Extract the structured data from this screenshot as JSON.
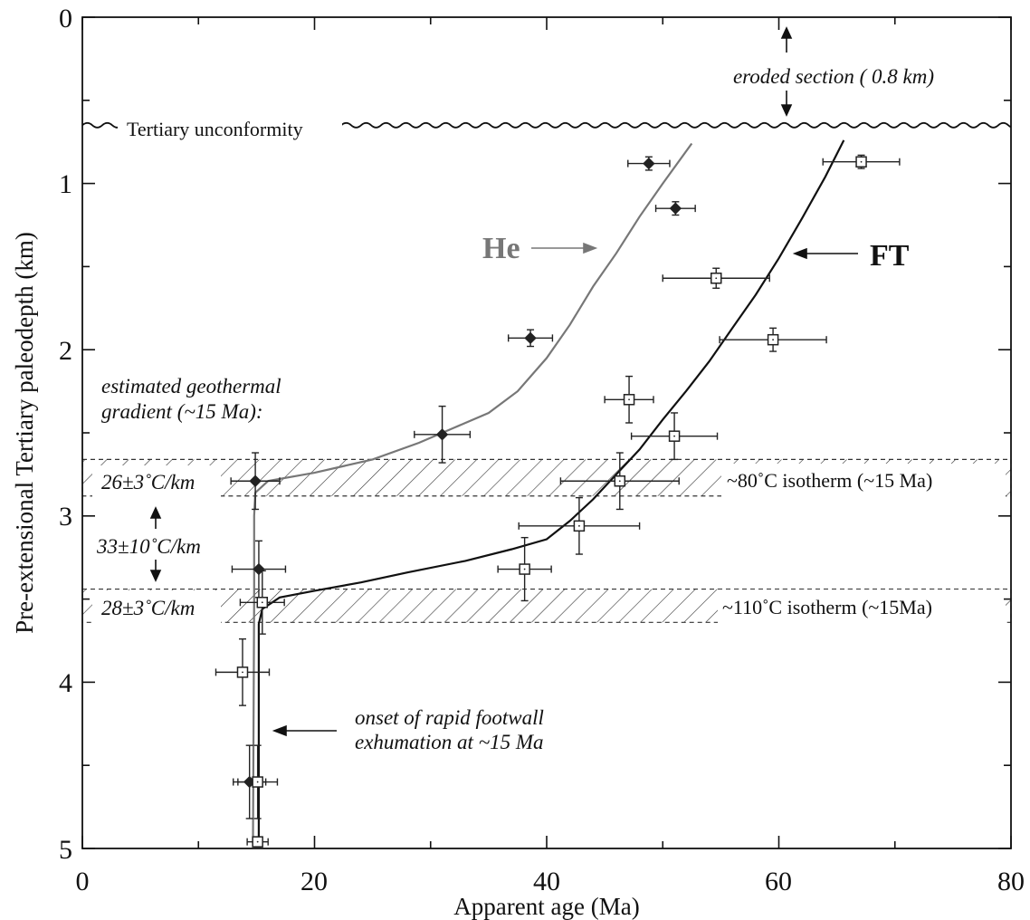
{
  "chart_data": {
    "type": "scatter",
    "title": "",
    "xlabel": "Apparent age (Ma)",
    "ylabel": "Pre-extensional Tertiary paleodepth (km)",
    "xlim": [
      0,
      80
    ],
    "ylim": [
      0,
      5
    ],
    "y_inverted": true,
    "x_ticks": [
      "0",
      "20",
      "40",
      "60",
      "80"
    ],
    "y_ticks": [
      "0",
      "1",
      "2",
      "3",
      "4",
      "5"
    ],
    "grid": false,
    "series": [
      {
        "name": "He",
        "marker": "filled-diamond",
        "color": "#222222",
        "points": [
          {
            "x": 48.8,
            "y": 0.88,
            "xerr": 1.8,
            "yerr": 0.04
          },
          {
            "x": 51.1,
            "y": 1.15,
            "xerr": 1.7,
            "yerr": 0.04
          },
          {
            "x": 38.6,
            "y": 1.93,
            "xerr": 1.9,
            "yerr": 0.05
          },
          {
            "x": 31.0,
            "y": 2.51,
            "xerr": 2.4,
            "yerr": 0.17
          },
          {
            "x": 14.9,
            "y": 2.79,
            "xerr": 2.1,
            "yerr": 0.17
          },
          {
            "x": 15.2,
            "y": 3.32,
            "xerr": 2.3,
            "yerr": 0.17
          },
          {
            "x": 14.4,
            "y": 4.6,
            "xerr": 1.4,
            "yerr": 0.22
          }
        ]
      },
      {
        "name": "FT",
        "marker": "open-square",
        "color": "#222222",
        "points": [
          {
            "x": 67.1,
            "y": 0.87,
            "xerr": 3.3,
            "yerr": 0.04
          },
          {
            "x": 54.6,
            "y": 1.57,
            "xerr": 4.6,
            "yerr": 0.06
          },
          {
            "x": 59.5,
            "y": 1.94,
            "xerr": 4.6,
            "yerr": 0.07
          },
          {
            "x": 47.1,
            "y": 2.3,
            "xerr": 2.1,
            "yerr": 0.14
          },
          {
            "x": 51.0,
            "y": 2.52,
            "xerr": 3.7,
            "yerr": 0.14
          },
          {
            "x": 46.3,
            "y": 2.79,
            "xerr": 5.1,
            "yerr": 0.17
          },
          {
            "x": 42.8,
            "y": 3.06,
            "xerr": 5.2,
            "yerr": 0.17
          },
          {
            "x": 38.1,
            "y": 3.32,
            "xerr": 2.3,
            "yerr": 0.19
          },
          {
            "x": 15.5,
            "y": 3.52,
            "xerr": 1.9,
            "yerr": 0.19
          },
          {
            "x": 13.8,
            "y": 3.94,
            "xerr": 2.3,
            "yerr": 0.2
          },
          {
            "x": 15.1,
            "y": 4.6,
            "xerr": 1.7,
            "yerr": 0.22
          },
          {
            "x": 15.1,
            "y": 4.96,
            "xerr": 0.9,
            "yerr": 0.03
          }
        ]
      }
    ],
    "curves": [
      {
        "name": "He",
        "color": "#777777",
        "points": [
          [
            14.7,
            4.97
          ],
          [
            14.8,
            3.5
          ],
          [
            14.8,
            3.0
          ],
          [
            14.9,
            2.86
          ],
          [
            16.0,
            2.79
          ],
          [
            20.0,
            2.74
          ],
          [
            25.0,
            2.66
          ],
          [
            29.0,
            2.56
          ],
          [
            32.0,
            2.47
          ],
          [
            35.0,
            2.38
          ],
          [
            37.5,
            2.25
          ],
          [
            40.0,
            2.05
          ],
          [
            42.0,
            1.85
          ],
          [
            44.0,
            1.62
          ],
          [
            46.0,
            1.42
          ],
          [
            48.0,
            1.2
          ],
          [
            50.0,
            1.0
          ],
          [
            52.5,
            0.76
          ]
        ]
      },
      {
        "name": "FT",
        "color": "#111111",
        "points": [
          [
            15.2,
            4.97
          ],
          [
            15.2,
            3.65
          ],
          [
            15.5,
            3.56
          ],
          [
            17.0,
            3.49
          ],
          [
            20.0,
            3.45
          ],
          [
            24.0,
            3.4
          ],
          [
            28.0,
            3.34
          ],
          [
            33.0,
            3.27
          ],
          [
            37.0,
            3.2
          ],
          [
            40.0,
            3.14
          ],
          [
            42.0,
            3.03
          ],
          [
            44.0,
            2.9
          ],
          [
            46.0,
            2.75
          ],
          [
            48.0,
            2.6
          ],
          [
            50.0,
            2.42
          ],
          [
            52.0,
            2.25
          ],
          [
            54.0,
            2.07
          ],
          [
            56.0,
            1.87
          ],
          [
            58.0,
            1.67
          ],
          [
            60.0,
            1.45
          ],
          [
            62.0,
            1.21
          ],
          [
            64.0,
            0.96
          ],
          [
            65.6,
            0.74
          ]
        ]
      }
    ],
    "isotherm_bands": [
      {
        "y_top": 2.66,
        "y_bottom": 2.88,
        "label": "~80˚C isotherm (~15 Ma)"
      },
      {
        "y_top": 3.44,
        "y_bottom": 3.64,
        "label": "~110˚C isotherm (~15Ma)"
      }
    ],
    "unconformity_depth": 0.65,
    "annotations": {
      "eroded_section": "eroded section ( 0.8 km)",
      "unconformity": "Tertiary unconformity",
      "curve_he": "He",
      "curve_ft": "FT",
      "gradient_title_line1": "estimated geothermal",
      "gradient_title_line2": "gradient (~15 Ma):",
      "gradient_upper": "26±3˚C/km",
      "gradient_middle": "33±10˚C/km",
      "gradient_lower": "28±3˚C/km",
      "onset_line1": "onset of rapid footwall",
      "onset_line2": "exhumation at ~15 Ma"
    }
  }
}
